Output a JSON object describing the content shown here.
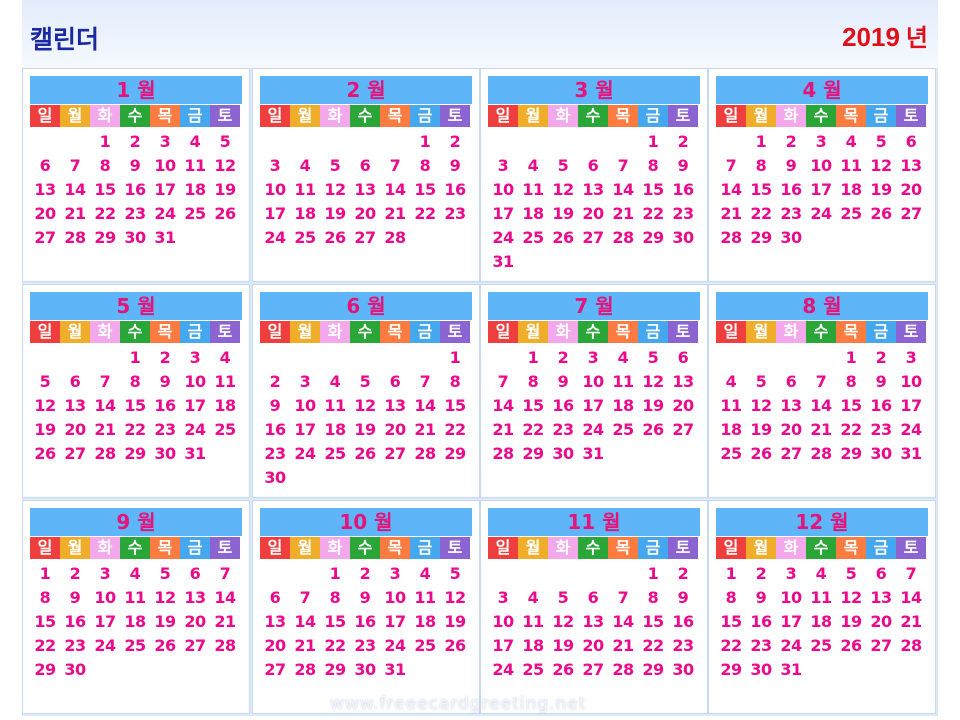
{
  "app_title": "캘린더",
  "year": {
    "value": "2019",
    "unit": "년"
  },
  "weekday_labels": [
    "일",
    "월",
    "화",
    "수",
    "목",
    "금",
    "토"
  ],
  "colors": {
    "weekday_backgrounds": [
      "#ee3e3e",
      "#f0ad2a",
      "#f4a8ec",
      "#2aa538",
      "#fb7b40",
      "#45a7ee",
      "#8c64d2"
    ],
    "weekday_text": [
      "#ffffff",
      "#ffffff",
      "#ffffff",
      "#ffffff",
      "#ffffff",
      "#ffffff",
      "#ffffff"
    ],
    "month_header_bg": "#5eb6f8",
    "month_title_color": "#e6137a",
    "day_number_color": "#ec0a8c",
    "year_color": "#e0101a",
    "app_title_color": "#1a2aa0"
  },
  "months": [
    {
      "label": "1 월",
      "weeks": [
        [
          "",
          "",
          "1",
          "2",
          "3",
          "4",
          "5"
        ],
        [
          "6",
          "7",
          "8",
          "9",
          "10",
          "11",
          "12"
        ],
        [
          "13",
          "14",
          "15",
          "16",
          "17",
          "18",
          "19"
        ],
        [
          "20",
          "21",
          "22",
          "23",
          "24",
          "25",
          "26"
        ],
        [
          "27",
          "28",
          "29",
          "30",
          "31",
          "",
          ""
        ]
      ]
    },
    {
      "label": "2 월",
      "weeks": [
        [
          "",
          "",
          "",
          "",
          "",
          "1",
          "2"
        ],
        [
          "3",
          "4",
          "5",
          "6",
          "7",
          "8",
          "9"
        ],
        [
          "10",
          "11",
          "12",
          "13",
          "14",
          "15",
          "16"
        ],
        [
          "17",
          "18",
          "19",
          "20",
          "21",
          "22",
          "23"
        ],
        [
          "24",
          "25",
          "26",
          "27",
          "28",
          "",
          ""
        ]
      ]
    },
    {
      "label": "3 월",
      "weeks": [
        [
          "",
          "",
          "",
          "",
          "",
          "1",
          "2"
        ],
        [
          "3",
          "4",
          "5",
          "6",
          "7",
          "8",
          "9"
        ],
        [
          "10",
          "11",
          "12",
          "13",
          "14",
          "15",
          "16"
        ],
        [
          "17",
          "18",
          "19",
          "20",
          "21",
          "22",
          "23"
        ],
        [
          "24",
          "25",
          "26",
          "27",
          "28",
          "29",
          "30"
        ],
        [
          "31",
          "",
          "",
          "",
          "",
          "",
          ""
        ]
      ]
    },
    {
      "label": "4 월",
      "weeks": [
        [
          "",
          "1",
          "2",
          "3",
          "4",
          "5",
          "6"
        ],
        [
          "7",
          "8",
          "9",
          "10",
          "11",
          "12",
          "13"
        ],
        [
          "14",
          "15",
          "16",
          "17",
          "18",
          "19",
          "20"
        ],
        [
          "21",
          "22",
          "23",
          "24",
          "25",
          "26",
          "27"
        ],
        [
          "28",
          "29",
          "30",
          "",
          "",
          "",
          ""
        ]
      ]
    },
    {
      "label": "5 월",
      "weeks": [
        [
          "",
          "",
          "",
          "1",
          "2",
          "3",
          "4"
        ],
        [
          "5",
          "6",
          "7",
          "8",
          "9",
          "10",
          "11"
        ],
        [
          "12",
          "13",
          "14",
          "15",
          "16",
          "17",
          "18"
        ],
        [
          "19",
          "20",
          "21",
          "22",
          "23",
          "24",
          "25"
        ],
        [
          "26",
          "27",
          "28",
          "29",
          "30",
          "31",
          ""
        ]
      ]
    },
    {
      "label": "6 월",
      "weeks": [
        [
          "",
          "",
          "",
          "",
          "",
          "",
          "1"
        ],
        [
          "2",
          "3",
          "4",
          "5",
          "6",
          "7",
          "8"
        ],
        [
          "9",
          "10",
          "11",
          "12",
          "13",
          "14",
          "15"
        ],
        [
          "16",
          "17",
          "18",
          "19",
          "20",
          "21",
          "22"
        ],
        [
          "23",
          "24",
          "25",
          "26",
          "27",
          "28",
          "29"
        ],
        [
          "30",
          "",
          "",
          "",
          "",
          "",
          ""
        ]
      ]
    },
    {
      "label": "7 월",
      "weeks": [
        [
          "",
          "1",
          "2",
          "3",
          "4",
          "5",
          "6"
        ],
        [
          "7",
          "8",
          "9",
          "10",
          "11",
          "12",
          "13"
        ],
        [
          "14",
          "15",
          "16",
          "17",
          "18",
          "19",
          "20"
        ],
        [
          "21",
          "22",
          "23",
          "24",
          "25",
          "26",
          "27"
        ],
        [
          "28",
          "29",
          "30",
          "31",
          "",
          "",
          ""
        ]
      ]
    },
    {
      "label": "8 월",
      "weeks": [
        [
          "",
          "",
          "",
          "",
          "1",
          "2",
          "3"
        ],
        [
          "4",
          "5",
          "6",
          "7",
          "8",
          "9",
          "10"
        ],
        [
          "11",
          "12",
          "13",
          "14",
          "15",
          "16",
          "17"
        ],
        [
          "18",
          "19",
          "20",
          "21",
          "22",
          "23",
          "24"
        ],
        [
          "25",
          "26",
          "27",
          "28",
          "29",
          "30",
          "31"
        ]
      ]
    },
    {
      "label": "9 월",
      "weeks": [
        [
          "1",
          "2",
          "3",
          "4",
          "5",
          "6",
          "7"
        ],
        [
          "8",
          "9",
          "10",
          "11",
          "12",
          "13",
          "14"
        ],
        [
          "15",
          "16",
          "17",
          "18",
          "19",
          "20",
          "21"
        ],
        [
          "22",
          "23",
          "24",
          "25",
          "26",
          "27",
          "28"
        ],
        [
          "29",
          "30",
          "",
          "",
          "",
          "",
          ""
        ]
      ]
    },
    {
      "label": "10 월",
      "weeks": [
        [
          "",
          "",
          "1",
          "2",
          "3",
          "4",
          "5"
        ],
        [
          "6",
          "7",
          "8",
          "9",
          "10",
          "11",
          "12"
        ],
        [
          "13",
          "14",
          "15",
          "16",
          "17",
          "18",
          "19"
        ],
        [
          "20",
          "21",
          "22",
          "23",
          "24",
          "25",
          "26"
        ],
        [
          "27",
          "28",
          "29",
          "30",
          "31",
          "",
          ""
        ]
      ]
    },
    {
      "label": "11 월",
      "weeks": [
        [
          "",
          "",
          "",
          "",
          "",
          "1",
          "2"
        ],
        [
          "3",
          "4",
          "5",
          "6",
          "7",
          "8",
          "9"
        ],
        [
          "10",
          "11",
          "12",
          "13",
          "14",
          "15",
          "16"
        ],
        [
          "17",
          "18",
          "19",
          "20",
          "21",
          "22",
          "23"
        ],
        [
          "24",
          "25",
          "26",
          "27",
          "28",
          "29",
          "30"
        ]
      ]
    },
    {
      "label": "12 월",
      "weeks": [
        [
          "1",
          "2",
          "3",
          "4",
          "5",
          "6",
          "7"
        ],
        [
          "8",
          "9",
          "10",
          "11",
          "12",
          "13",
          "14"
        ],
        [
          "15",
          "16",
          "17",
          "18",
          "19",
          "20",
          "21"
        ],
        [
          "22",
          "23",
          "24",
          "25",
          "26",
          "27",
          "28"
        ],
        [
          "29",
          "30",
          "31",
          "",
          "",
          "",
          ""
        ]
      ]
    }
  ],
  "watermark": "www.freeecardgreeting.net"
}
